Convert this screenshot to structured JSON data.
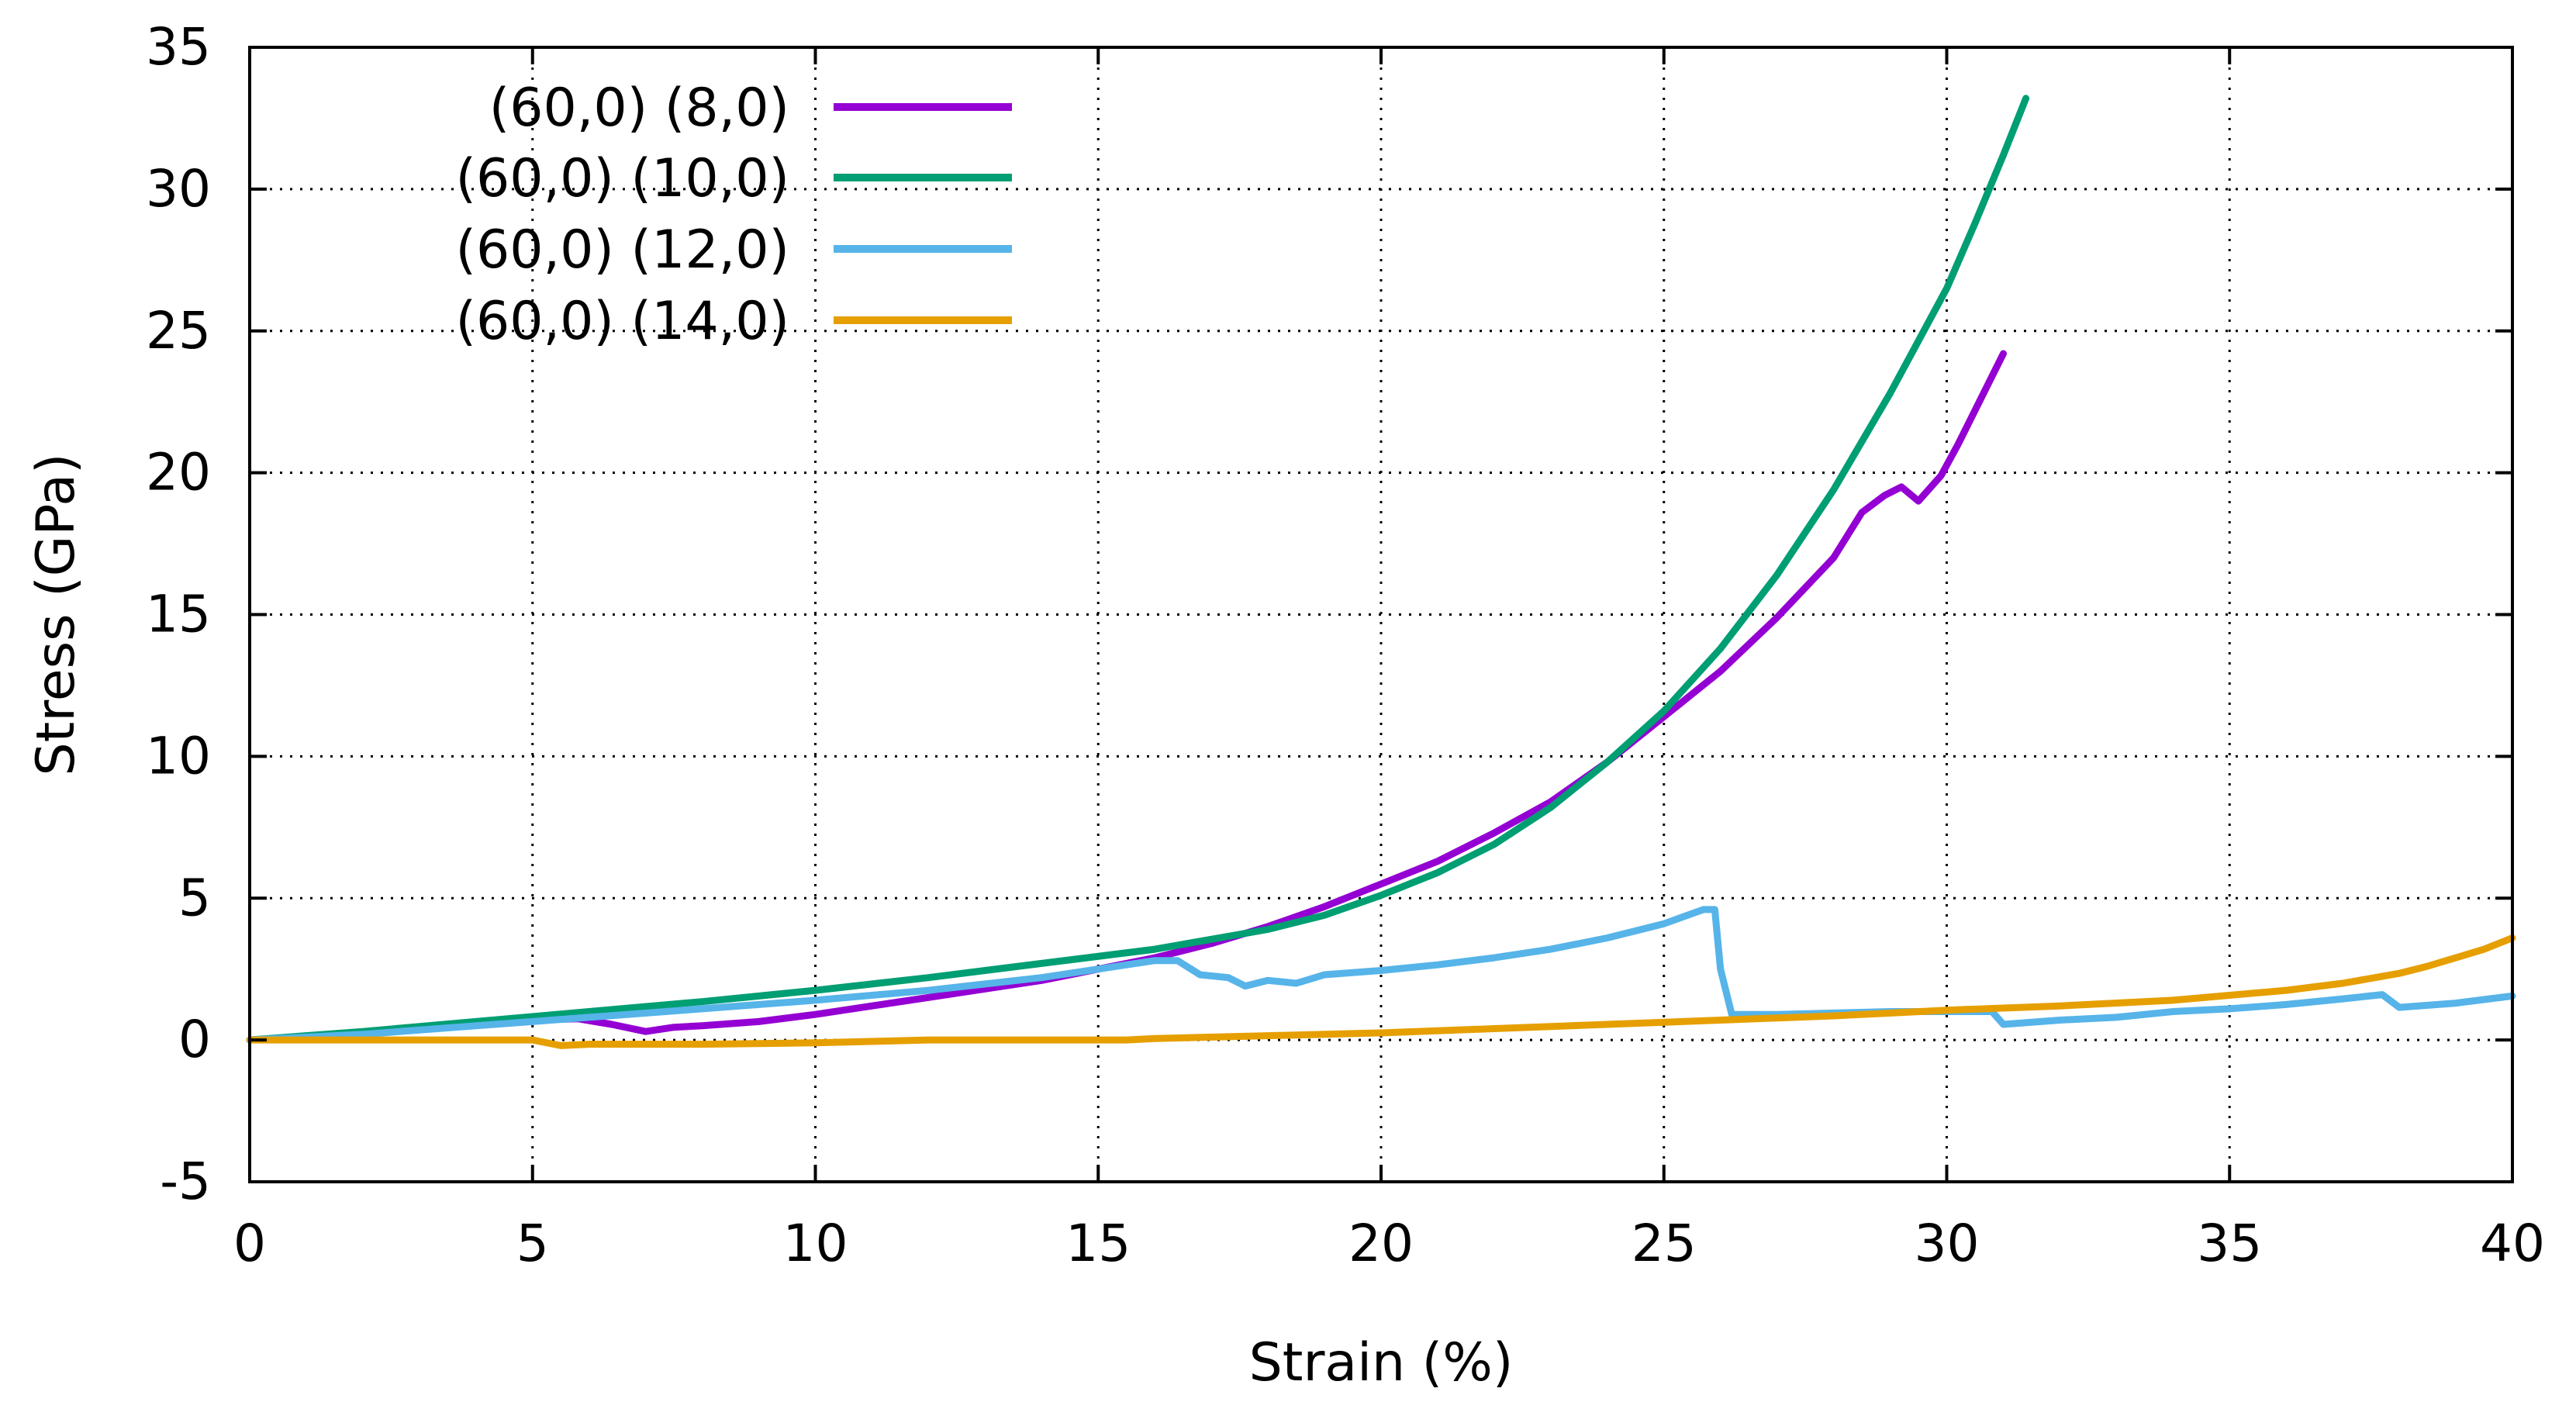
{
  "chart_data": {
    "type": "line",
    "title": "",
    "xlabel": "Strain (%)",
    "ylabel": "Stress (GPa)",
    "xlim": [
      0,
      40
    ],
    "ylim": [
      -5,
      35
    ],
    "xticks": [
      0,
      5,
      10,
      15,
      20,
      25,
      30,
      35,
      40
    ],
    "yticks": [
      -5,
      0,
      5,
      10,
      15,
      20,
      25,
      30,
      35
    ],
    "grid": true,
    "legend_position": "top-left",
    "series": [
      {
        "name": "(60,0) (8,0)",
        "color": "#9400D3",
        "points": [
          [
            0,
            0
          ],
          [
            1,
            0.05
          ],
          [
            2,
            0.25
          ],
          [
            3,
            0.4
          ],
          [
            4,
            0.55
          ],
          [
            5,
            0.7
          ],
          [
            5.8,
            0.75
          ],
          [
            6.4,
            0.55
          ],
          [
            7,
            0.3
          ],
          [
            7.5,
            0.45
          ],
          [
            8,
            0.5
          ],
          [
            9,
            0.65
          ],
          [
            10,
            0.9
          ],
          [
            11,
            1.2
          ],
          [
            12,
            1.5
          ],
          [
            13,
            1.8
          ],
          [
            14,
            2.1
          ],
          [
            15,
            2.5
          ],
          [
            16,
            2.9
          ],
          [
            17,
            3.4
          ],
          [
            18,
            4.0
          ],
          [
            19,
            4.7
          ],
          [
            20,
            5.5
          ],
          [
            21,
            6.3
          ],
          [
            22,
            7.3
          ],
          [
            23,
            8.4
          ],
          [
            24,
            9.8
          ],
          [
            25,
            11.4
          ],
          [
            26,
            13.0
          ],
          [
            27,
            14.9
          ],
          [
            28,
            17.0
          ],
          [
            28.5,
            18.6
          ],
          [
            28.9,
            19.2
          ],
          [
            29.2,
            19.5
          ],
          [
            29.5,
            19.0
          ],
          [
            29.9,
            19.9
          ],
          [
            30.2,
            21.0
          ],
          [
            30.6,
            22.6
          ],
          [
            31,
            24.2
          ]
        ]
      },
      {
        "name": "(60,0) (10,0)",
        "color": "#009E73",
        "points": [
          [
            0,
            0
          ],
          [
            2,
            0.3
          ],
          [
            4,
            0.65
          ],
          [
            6,
            1.0
          ],
          [
            8,
            1.35
          ],
          [
            10,
            1.75
          ],
          [
            12,
            2.2
          ],
          [
            14,
            2.7
          ],
          [
            16,
            3.2
          ],
          [
            18,
            3.9
          ],
          [
            19,
            4.4
          ],
          [
            20,
            5.1
          ],
          [
            21,
            5.9
          ],
          [
            22,
            6.9
          ],
          [
            23,
            8.2
          ],
          [
            24,
            9.8
          ],
          [
            25,
            11.6
          ],
          [
            26,
            13.8
          ],
          [
            27,
            16.4
          ],
          [
            28,
            19.4
          ],
          [
            29,
            22.8
          ],
          [
            30,
            26.5
          ],
          [
            30.5,
            28.8
          ],
          [
            31,
            31.2
          ],
          [
            31.4,
            33.2
          ]
        ]
      },
      {
        "name": "(60,0) (12,0)",
        "color": "#56B4E9",
        "points": [
          [
            0,
            0
          ],
          [
            2,
            0.2
          ],
          [
            4,
            0.5
          ],
          [
            6,
            0.8
          ],
          [
            8,
            1.1
          ],
          [
            10,
            1.4
          ],
          [
            12,
            1.75
          ],
          [
            14,
            2.2
          ],
          [
            15,
            2.5
          ],
          [
            16,
            2.8
          ],
          [
            16.4,
            2.8
          ],
          [
            16.8,
            2.3
          ],
          [
            17.3,
            2.2
          ],
          [
            17.6,
            1.9
          ],
          [
            18,
            2.1
          ],
          [
            18.5,
            2.0
          ],
          [
            19,
            2.3
          ],
          [
            20,
            2.45
          ],
          [
            21,
            2.65
          ],
          [
            22,
            2.9
          ],
          [
            23,
            3.2
          ],
          [
            24,
            3.6
          ],
          [
            25,
            4.1
          ],
          [
            25.7,
            4.6
          ],
          [
            25.9,
            4.6
          ],
          [
            26,
            2.5
          ],
          [
            26.2,
            0.9
          ],
          [
            27,
            0.9
          ],
          [
            28,
            0.95
          ],
          [
            29,
            1.0
          ],
          [
            30,
            1.0
          ],
          [
            30.8,
            1.0
          ],
          [
            31,
            0.55
          ],
          [
            32,
            0.7
          ],
          [
            33,
            0.8
          ],
          [
            34,
            1.0
          ],
          [
            35,
            1.1
          ],
          [
            36,
            1.25
          ],
          [
            37,
            1.45
          ],
          [
            37.7,
            1.6
          ],
          [
            38,
            1.15
          ],
          [
            39,
            1.3
          ],
          [
            40,
            1.55
          ]
        ]
      },
      {
        "name": "(60,0) (14,0)",
        "color": "#E69F00",
        "points": [
          [
            0,
            0
          ],
          [
            2,
            0
          ],
          [
            4,
            0
          ],
          [
            5,
            0
          ],
          [
            5.5,
            -0.2
          ],
          [
            6,
            -0.15
          ],
          [
            8,
            -0.15
          ],
          [
            10,
            -0.1
          ],
          [
            12,
            0
          ],
          [
            14,
            0
          ],
          [
            15.5,
            0
          ],
          [
            16,
            0.05
          ],
          [
            18,
            0.15
          ],
          [
            20,
            0.25
          ],
          [
            22,
            0.4
          ],
          [
            24,
            0.55
          ],
          [
            26,
            0.7
          ],
          [
            28,
            0.85
          ],
          [
            30,
            1.05
          ],
          [
            32,
            1.2
          ],
          [
            34,
            1.4
          ],
          [
            36,
            1.75
          ],
          [
            37,
            2.0
          ],
          [
            38,
            2.35
          ],
          [
            38.5,
            2.6
          ],
          [
            39,
            2.9
          ],
          [
            39.5,
            3.2
          ],
          [
            40,
            3.6
          ]
        ]
      }
    ]
  }
}
